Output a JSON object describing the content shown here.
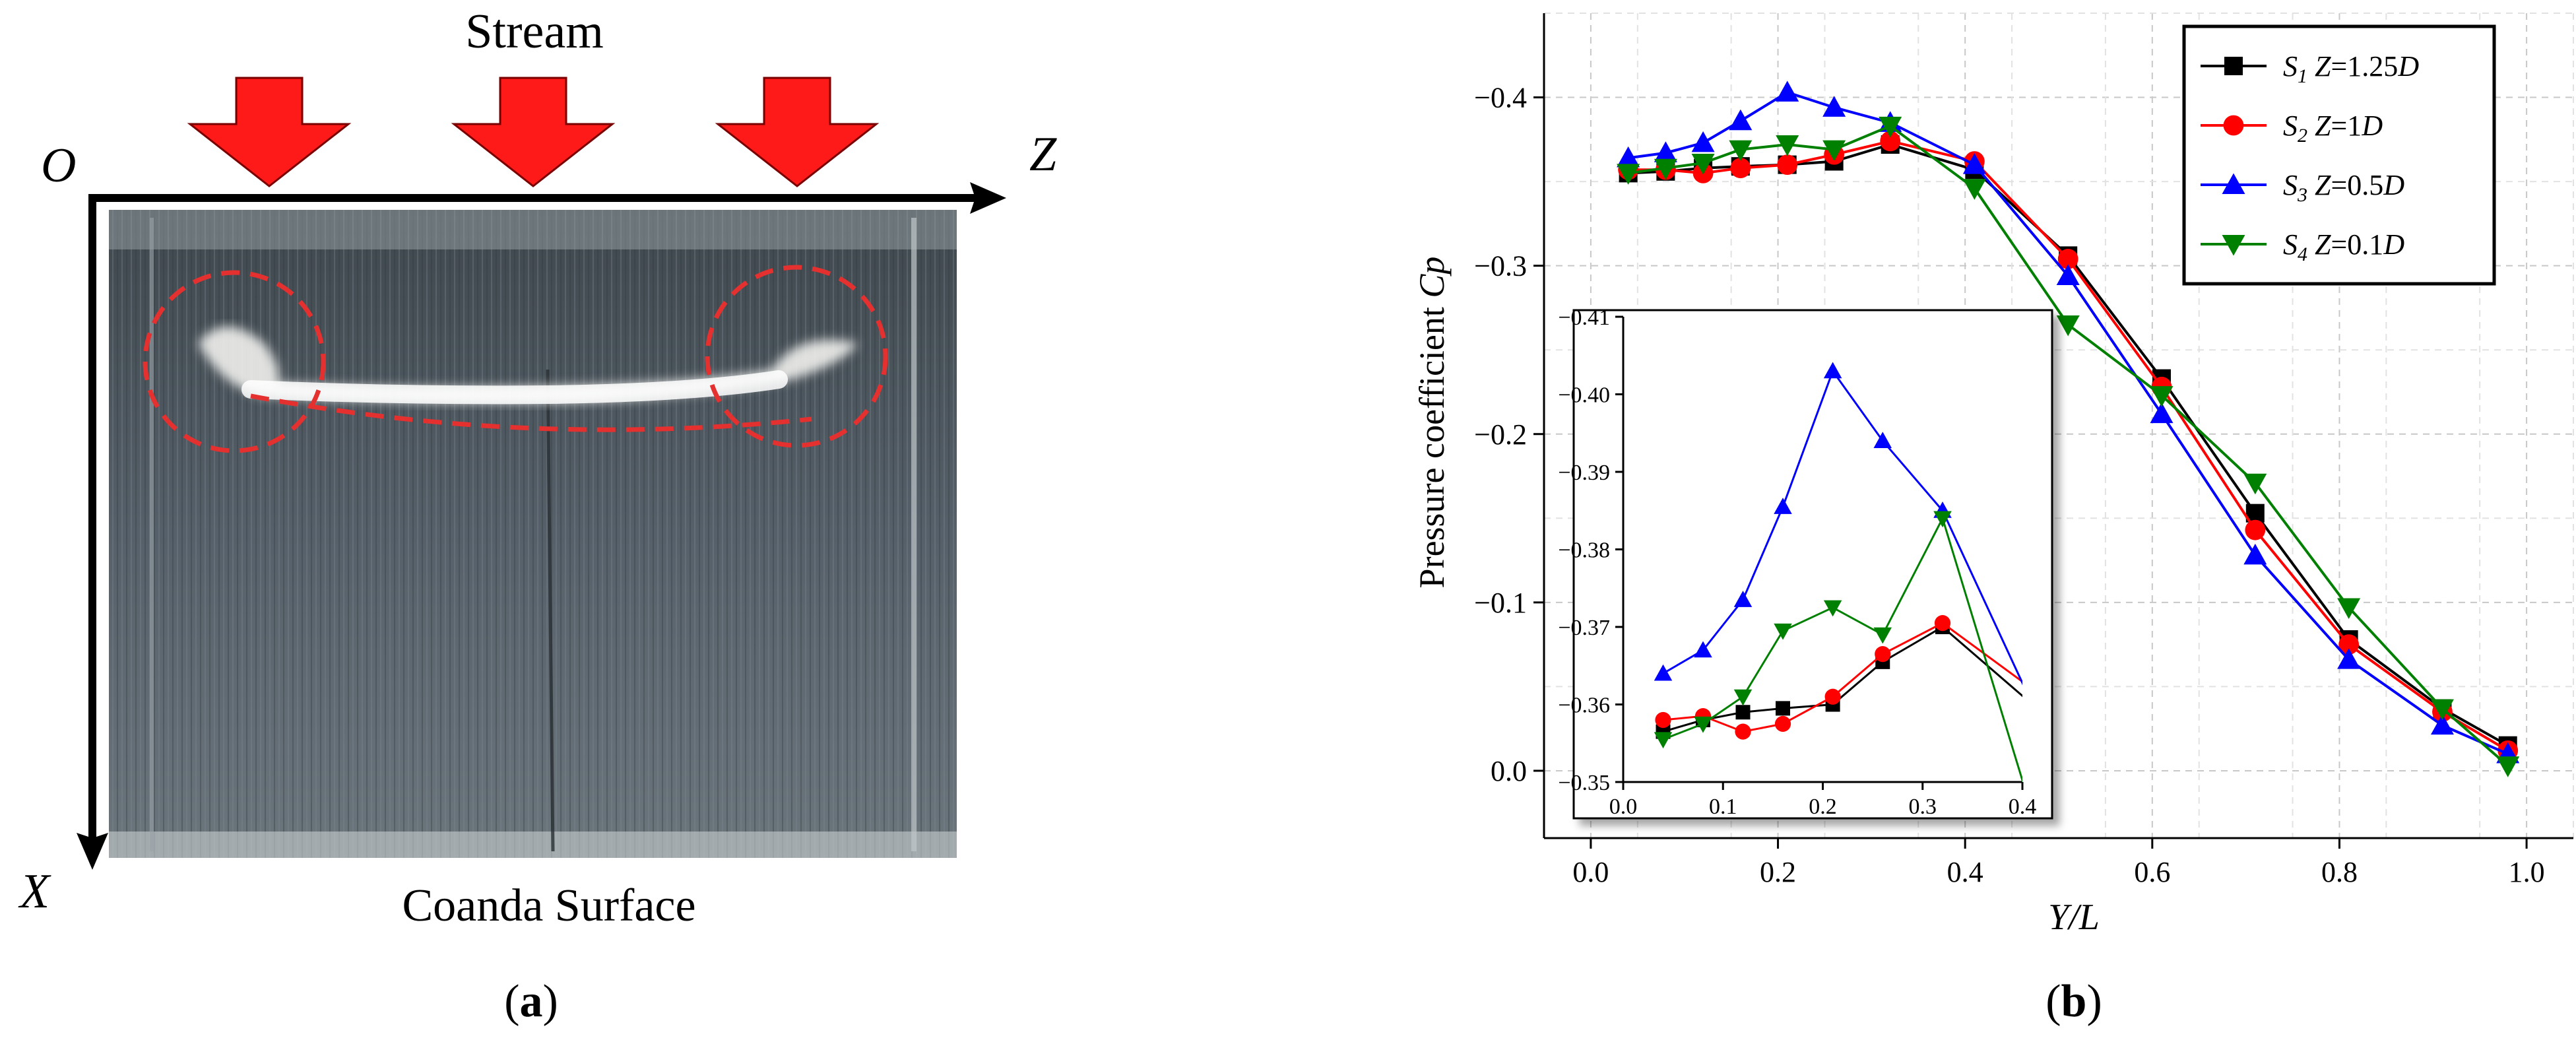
{
  "panel_a": {
    "stream_label": "Stream",
    "origin_label": "O",
    "z_axis_label": "Z",
    "x_axis_label": "X",
    "surface_label": "Coanda Surface",
    "caption": {
      "open": "(",
      "letter": "a",
      "close": ")"
    },
    "colors": {
      "arrow": "#ff1a1a",
      "circle": "#e53030",
      "photo_bg": "#4b5459"
    }
  },
  "panel_b": {
    "caption": {
      "open": "(",
      "letter": "b",
      "close": ")"
    }
  },
  "chart_data": [
    {
      "type": "line",
      "xlabel": "Y/L",
      "ylabel_text": "Pressure coefficient ",
      "ylabel_var": "Cp",
      "xlim": [
        -0.05,
        1.05
      ],
      "ylim": [
        0.04,
        -0.45
      ],
      "x_ticks": [
        0.0,
        0.2,
        0.4,
        0.6,
        0.8,
        1.0
      ],
      "x_tick_labels": [
        "0.0",
        "0.2",
        "0.4",
        "0.6",
        "0.8",
        "1.0"
      ],
      "y_ticks": [
        0.0,
        -0.1,
        -0.2,
        -0.3,
        -0.4
      ],
      "y_tick_labels": [
        "0.0",
        "−0.1",
        "−0.2",
        "−0.3",
        "−0.4"
      ],
      "grid": true,
      "legend_position": "top-right",
      "series": [
        {
          "name": "S1 Z=1.25D",
          "legend": {
            "s": "S",
            "sub": "1",
            "eq": " Z",
            "val": "=1.25",
            "unit": "D"
          },
          "color": "#000000",
          "marker": "square",
          "x": [
            0.04,
            0.08,
            0.12,
            0.16,
            0.21,
            0.26,
            0.32,
            0.41,
            0.51,
            0.61,
            0.71,
            0.81,
            0.91,
            0.98
          ],
          "values": [
            -0.355,
            -0.356,
            -0.358,
            -0.359,
            -0.36,
            -0.362,
            -0.372,
            -0.357,
            -0.306,
            -0.233,
            -0.153,
            -0.078,
            -0.037,
            -0.015
          ]
        },
        {
          "name": "S2 Z=1D",
          "legend": {
            "s": "S",
            "sub": "2",
            "eq": " Z",
            "val": "=1",
            "unit": "D"
          },
          "color": "#ff0000",
          "marker": "circle",
          "x": [
            0.04,
            0.08,
            0.12,
            0.16,
            0.21,
            0.26,
            0.32,
            0.41,
            0.51,
            0.61,
            0.71,
            0.81,
            0.91,
            0.98
          ],
          "values": [
            -0.357,
            -0.357,
            -0.355,
            -0.358,
            -0.36,
            -0.366,
            -0.374,
            -0.362,
            -0.304,
            -0.228,
            -0.143,
            -0.075,
            -0.035,
            -0.012
          ]
        },
        {
          "name": "S3 Z=0.5D",
          "legend": {
            "s": "S",
            "sub": "3",
            "eq": " Z",
            "val": "=0.5",
            "unit": "D"
          },
          "color": "#0000ff",
          "marker": "triangle-up",
          "x": [
            0.04,
            0.08,
            0.12,
            0.16,
            0.21,
            0.26,
            0.32,
            0.41,
            0.51,
            0.61,
            0.71,
            0.81,
            0.91,
            0.98
          ],
          "values": [
            -0.364,
            -0.367,
            -0.373,
            -0.386,
            -0.403,
            -0.394,
            -0.385,
            -0.36,
            -0.294,
            -0.212,
            -0.128,
            -0.066,
            -0.027,
            -0.01
          ]
        },
        {
          "name": "S4 Z=0.1D",
          "legend": {
            "s": "S",
            "sub": "4",
            "eq": " Z",
            "val": "=0.1",
            "unit": "D"
          },
          "color": "#008000",
          "marker": "triangle-down",
          "x": [
            0.04,
            0.08,
            0.12,
            0.16,
            0.21,
            0.26,
            0.32,
            0.41,
            0.51,
            0.61,
            0.71,
            0.81,
            0.91,
            0.98
          ],
          "values": [
            -0.355,
            -0.358,
            -0.361,
            -0.369,
            -0.372,
            -0.369,
            -0.383,
            -0.346,
            -0.265,
            -0.223,
            -0.171,
            -0.097,
            -0.037,
            -0.003
          ]
        }
      ]
    },
    {
      "type": "line",
      "role": "inset",
      "xlim": [
        0.0,
        0.4
      ],
      "ylim": [
        -0.35,
        -0.41
      ],
      "x_ticks": [
        0.0,
        0.1,
        0.2,
        0.3,
        0.4
      ],
      "x_tick_labels": [
        "0.0",
        "0.1",
        "0.2",
        "0.3",
        "0.4"
      ],
      "y_ticks": [
        -0.35,
        -0.36,
        -0.37,
        -0.38,
        -0.39,
        -0.4,
        -0.41
      ],
      "y_tick_labels": [
        "−0.35",
        "−0.36",
        "−0.37",
        "−0.38",
        "−0.39",
        "−0.40",
        "−0.41"
      ],
      "series": [
        {
          "color": "#000000",
          "marker": "square",
          "x": [
            0.04,
            0.08,
            0.12,
            0.16,
            0.21,
            0.26,
            0.32,
            0.41
          ],
          "values": [
            -0.3565,
            -0.358,
            -0.359,
            -0.3595,
            -0.36,
            -0.3655,
            -0.37,
            -0.36
          ]
        },
        {
          "color": "#ff0000",
          "marker": "circle",
          "x": [
            0.04,
            0.08,
            0.12,
            0.16,
            0.21,
            0.26,
            0.32,
            0.41
          ],
          "values": [
            -0.358,
            -0.3585,
            -0.3565,
            -0.3575,
            -0.361,
            -0.3665,
            -0.3705,
            -0.362
          ]
        },
        {
          "color": "#0000ff",
          "marker": "triangle-up",
          "x": [
            0.04,
            0.08,
            0.12,
            0.16,
            0.21,
            0.26,
            0.32,
            0.41
          ],
          "values": [
            -0.364,
            -0.367,
            -0.3735,
            -0.3855,
            -0.403,
            -0.394,
            -0.385,
            -0.36
          ]
        },
        {
          "color": "#008000",
          "marker": "triangle-down",
          "x": [
            0.04,
            0.08,
            0.12,
            0.16,
            0.21,
            0.26,
            0.32,
            0.41
          ],
          "values": [
            -0.3555,
            -0.3575,
            -0.361,
            -0.3695,
            -0.3725,
            -0.369,
            -0.384,
            -0.346
          ]
        }
      ]
    }
  ]
}
